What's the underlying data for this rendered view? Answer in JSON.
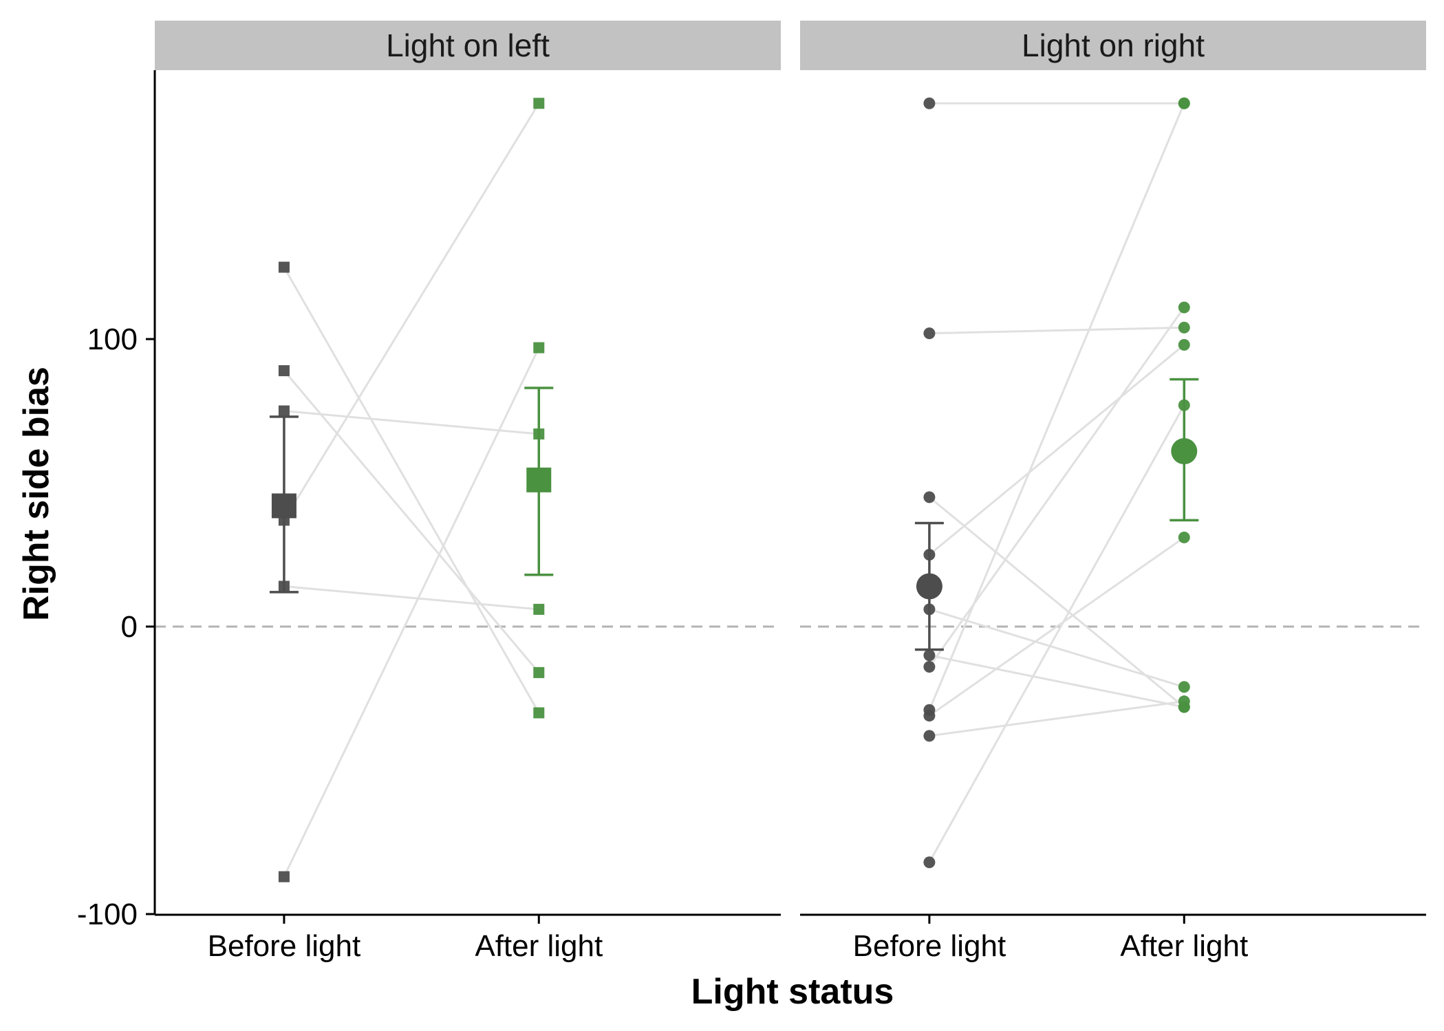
{
  "chart_data": {
    "type": "scatter",
    "xlabel": "Light status",
    "ylabel": "Right side bias",
    "categories": [
      "Before light",
      "After light"
    ],
    "ylim": [
      -100,
      195
    ],
    "yticks": [
      -100,
      0,
      100
    ],
    "reference_line": {
      "y": 0,
      "style": "dashed"
    },
    "colors": {
      "Before light": "#4d4d4d",
      "After light": "#4a9140",
      "connector": "#e0e0e0",
      "strip": "#c2c2c2",
      "reference": "#b3b3b3"
    },
    "panels": [
      {
        "title": "Light on left",
        "marker": "square",
        "pairs": [
          [
            125,
            -30
          ],
          [
            89,
            -16
          ],
          [
            75,
            67
          ],
          [
            37,
            182
          ],
          [
            14,
            6
          ],
          [
            -87,
            97
          ]
        ],
        "summary": {
          "Before light": {
            "mean": 42,
            "lower": 12,
            "upper": 73
          },
          "After light": {
            "mean": 51,
            "lower": 18,
            "upper": 83
          }
        }
      },
      {
        "title": "Light on right",
        "marker": "circle",
        "pairs": [
          [
            182,
            182
          ],
          [
            102,
            104
          ],
          [
            45,
            -28
          ],
          [
            25,
            98
          ],
          [
            6,
            -21
          ],
          [
            -10,
            -28
          ],
          [
            -14,
            111
          ],
          [
            -29,
            182
          ],
          [
            -31,
            31
          ],
          [
            -38,
            -26
          ],
          [
            -82,
            77
          ]
        ],
        "summary": {
          "Before light": {
            "mean": 14,
            "lower": -8,
            "upper": 36
          },
          "After light": {
            "mean": 61,
            "lower": 37,
            "upper": 86
          }
        }
      }
    ]
  }
}
